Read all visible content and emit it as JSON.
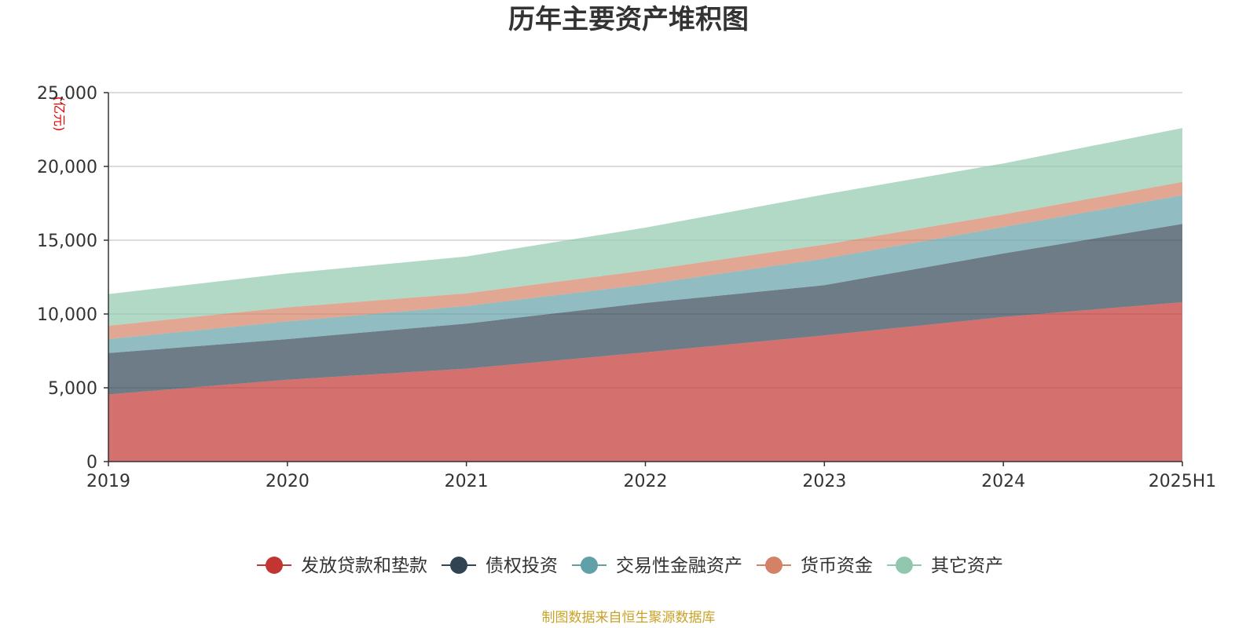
{
  "chart_data": {
    "type": "area",
    "stacked": true,
    "title": "历年主要资产堆积图",
    "ylabel": "(亿元)",
    "ylim": [
      0,
      25000
    ],
    "yticks": [
      0,
      5000,
      10000,
      15000,
      20000,
      25000
    ],
    "ytick_labels": [
      "0",
      "5,000",
      "10,000",
      "15,000",
      "20,000",
      "25,000"
    ],
    "x": [
      "2019",
      "2020",
      "2021",
      "2022",
      "2023",
      "2024",
      "2025H1"
    ],
    "grid": true,
    "legend_position": "bottom",
    "series": [
      {
        "name": "发放贷款和垫款",
        "color": "#c23531",
        "values": [
          4550,
          5550,
          6300,
          7400,
          8550,
          9800,
          10800
        ]
      },
      {
        "name": "债权投资",
        "color": "#2f4554",
        "values": [
          2800,
          2750,
          3050,
          3350,
          3400,
          4300,
          5300
        ]
      },
      {
        "name": "交易性金融资产",
        "color": "#61a0a8",
        "values": [
          950,
          1200,
          1200,
          1250,
          1800,
          1800,
          1950
        ]
      },
      {
        "name": "货币资金",
        "color": "#d48265",
        "values": [
          900,
          950,
          850,
          950,
          950,
          850,
          900
        ]
      },
      {
        "name": "其它资产",
        "color": "#91c7ae",
        "values": [
          2150,
          2300,
          2500,
          2900,
          3400,
          3450,
          3650
        ]
      }
    ]
  },
  "footer": {
    "source": "制图数据来自恒生聚源数据库"
  }
}
